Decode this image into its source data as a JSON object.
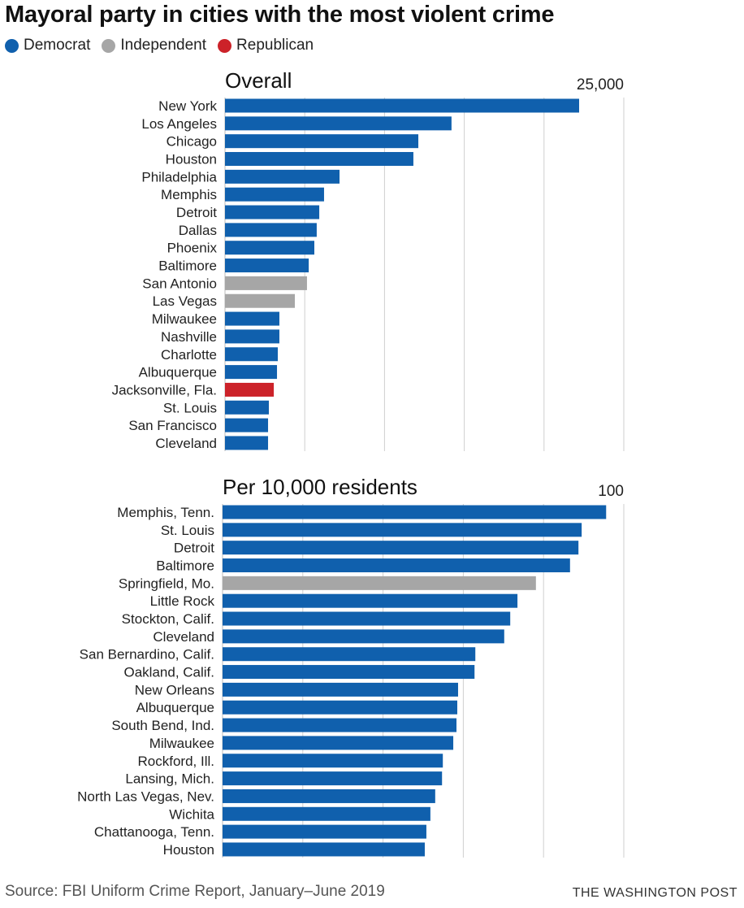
{
  "title": "Mayoral party in cities with the most violent crime",
  "legend": [
    {
      "label": "Democrat",
      "color": "#1060ad"
    },
    {
      "label": "Independent",
      "color": "#a6a6a6"
    },
    {
      "label": "Republican",
      "color": "#cc2229"
    }
  ],
  "source": "Source: FBI Uniform Crime Report, January–June 2019",
  "credit": "THE WASHINGTON POST",
  "chart_data": [
    {
      "type": "bar",
      "orientation": "horizontal",
      "title": "Overall",
      "xlim": [
        0,
        25000
      ],
      "max_tick_label": "25,000",
      "grid": true,
      "categories": [
        "New York",
        "Los Angeles",
        "Chicago",
        "Houston",
        "Philadelphia",
        "Memphis",
        "Detroit",
        "Dallas",
        "Phoenix",
        "Baltimore",
        "San Antonio",
        "Las Vegas",
        "Milwaukee",
        "Nashville",
        "Charlotte",
        "Albuquerque",
        "Jacksonville, Fla.",
        "St. Louis",
        "San Francisco",
        "Cleveland"
      ],
      "values": [
        22200,
        14200,
        12120,
        11810,
        7180,
        6210,
        5910,
        5750,
        5600,
        5250,
        5140,
        4380,
        3410,
        3410,
        3310,
        3260,
        3060,
        2750,
        2700,
        2700
      ],
      "party": [
        "Democrat",
        "Democrat",
        "Democrat",
        "Democrat",
        "Democrat",
        "Democrat",
        "Democrat",
        "Democrat",
        "Democrat",
        "Democrat",
        "Independent",
        "Independent",
        "Democrat",
        "Democrat",
        "Democrat",
        "Democrat",
        "Republican",
        "Democrat",
        "Democrat",
        "Democrat"
      ]
    },
    {
      "type": "bar",
      "orientation": "horizontal",
      "title": "Per 10,000 residents",
      "xlim": [
        0,
        100
      ],
      "max_tick_label": "100",
      "grid": true,
      "categories": [
        "Memphis, Tenn.",
        "St. Louis",
        "Detroit",
        "Baltimore",
        "Springfield, Mo.",
        "Little Rock",
        "Stockton, Calif.",
        "Cleveland",
        "San Bernardino, Calif.",
        "Oakland, Calif.",
        "New Orleans",
        "Albuquerque",
        "South Bend, Ind.",
        "Milwaukee",
        "Rockford, Ill.",
        "Lansing, Mich.",
        "North Las Vegas, Nev.",
        "Wichita",
        "Chattanooga, Tenn.",
        "Houston"
      ],
      "values": [
        95.6,
        89.5,
        88.7,
        86.6,
        78.1,
        73.5,
        71.7,
        70.2,
        63.0,
        62.8,
        58.7,
        58.5,
        58.3,
        57.5,
        54.9,
        54.7,
        53.0,
        51.8,
        50.8,
        50.4
      ],
      "party": [
        "Democrat",
        "Democrat",
        "Democrat",
        "Democrat",
        "Independent",
        "Democrat",
        "Democrat",
        "Democrat",
        "Democrat",
        "Democrat",
        "Democrat",
        "Democrat",
        "Democrat",
        "Democrat",
        "Democrat",
        "Democrat",
        "Democrat",
        "Democrat",
        "Democrat",
        "Democrat"
      ]
    }
  ]
}
